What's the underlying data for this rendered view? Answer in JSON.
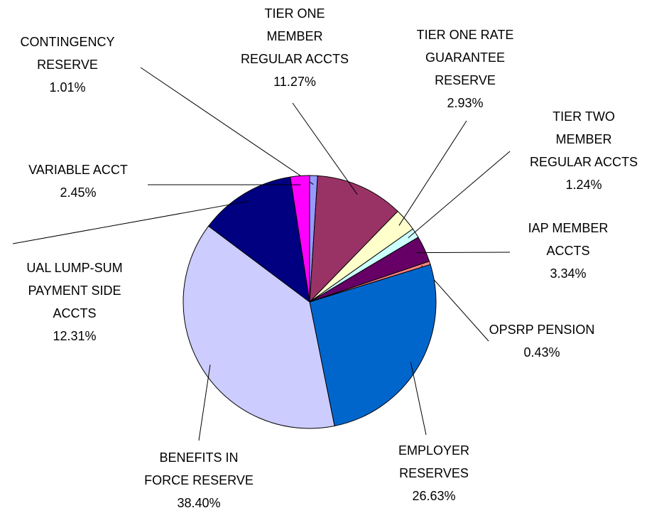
{
  "chart_data": {
    "type": "pie",
    "categories": [
      [
        "CONTINGENCY",
        "RESERVE"
      ],
      [
        "TIER ONE",
        "MEMBER",
        "REGULAR ACCTS"
      ],
      [
        "TIER ONE RATE",
        "GUARANTEE",
        "RESERVE"
      ],
      [
        "TIER TWO",
        "MEMBER",
        "REGULAR ACCTS"
      ],
      [
        "IAP MEMBER",
        "ACCTS"
      ],
      [
        "OPSRP PENSION"
      ],
      [
        "EMPLOYER",
        "RESERVES"
      ],
      [
        "BENEFITS IN",
        "FORCE RESERVE"
      ],
      [
        "UAL LUMP-SUM",
        "PAYMENT SIDE",
        "ACCTS"
      ],
      [
        "VARIABLE ACCT"
      ]
    ],
    "values": [
      1.01,
      11.27,
      2.93,
      1.24,
      3.34,
      0.43,
      26.63,
      38.4,
      12.31,
      2.45
    ],
    "value_labels": [
      "1.01%",
      "11.27%",
      "2.93%",
      "1.24%",
      "3.34%",
      "0.43%",
      "26.63%",
      "38.40%",
      "12.31%",
      "2.45%"
    ],
    "colors": [
      "#9999ff",
      "#993366",
      "#ffffcc",
      "#ccffff",
      "#660066",
      "#ff8080",
      "#0066cc",
      "#ccccff",
      "#000080",
      "#ff00ff"
    ]
  }
}
